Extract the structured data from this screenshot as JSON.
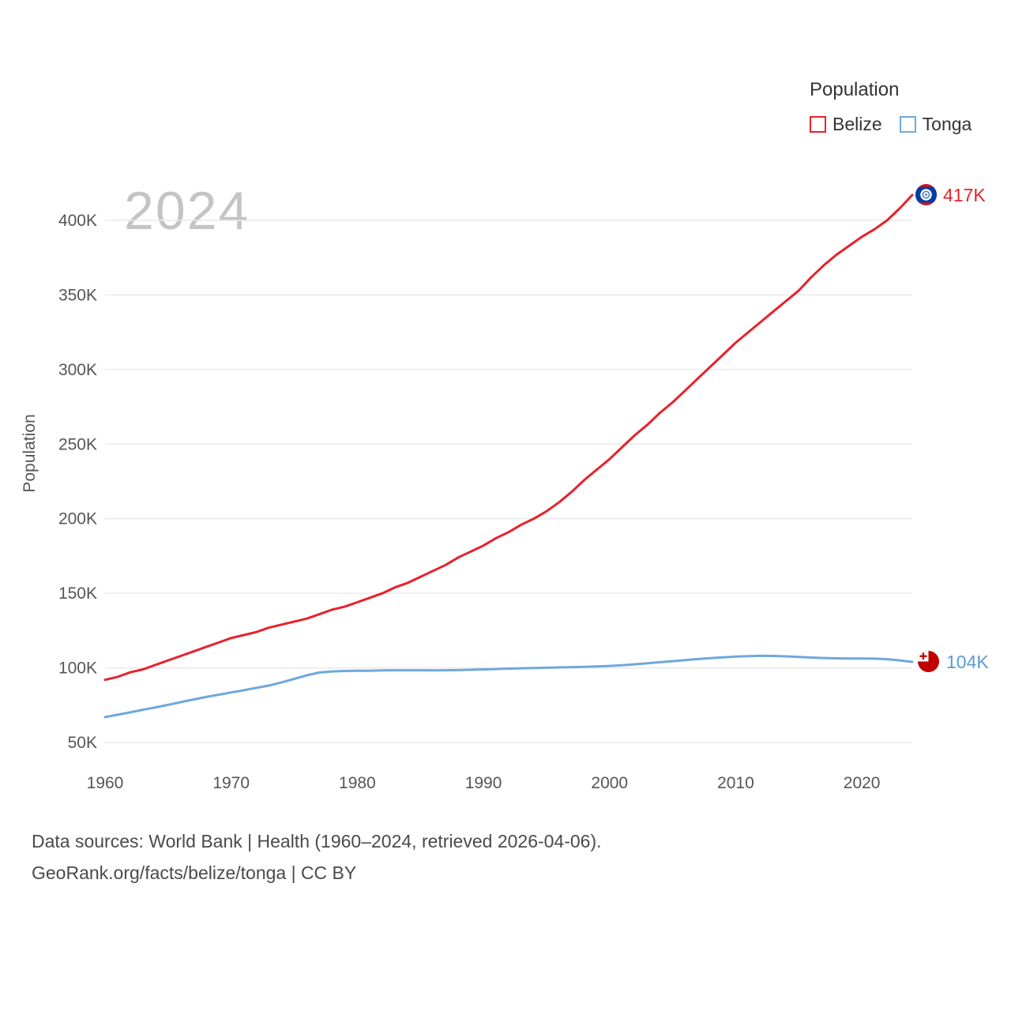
{
  "legend": {
    "title": "Population",
    "items": [
      {
        "label": "Belize",
        "color": "#e8212b"
      },
      {
        "label": "Tonga",
        "color": "#6fa8dc"
      }
    ]
  },
  "watermark_year": "2024",
  "y_axis_title": "Population",
  "end_labels": {
    "belize": "417K",
    "tonga": "104K"
  },
  "footer": {
    "line1": "Data sources: World Bank | Health (1960–2024, retrieved 2026-04-06).",
    "line2": "GeoRank.org/facts/belize/tonga | CC BY"
  },
  "chart_data": {
    "type": "line",
    "title": "Population",
    "ylabel": "Population",
    "xlabel": "",
    "units": "thousands of people",
    "grid": true,
    "legend_position": "top-right",
    "xlim": [
      1960,
      2024
    ],
    "ylim_thousands": [
      50,
      420
    ],
    "x": [
      1960,
      1961,
      1962,
      1963,
      1964,
      1965,
      1966,
      1967,
      1968,
      1969,
      1970,
      1971,
      1972,
      1973,
      1974,
      1975,
      1976,
      1977,
      1978,
      1979,
      1980,
      1981,
      1982,
      1983,
      1984,
      1985,
      1986,
      1987,
      1988,
      1989,
      1990,
      1991,
      1992,
      1993,
      1994,
      1995,
      1996,
      1997,
      1998,
      1999,
      2000,
      2001,
      2002,
      2003,
      2004,
      2005,
      2006,
      2007,
      2008,
      2009,
      2010,
      2011,
      2012,
      2013,
      2014,
      2015,
      2016,
      2017,
      2018,
      2019,
      2020,
      2021,
      2022,
      2023,
      2024
    ],
    "series": [
      {
        "name": "Belize",
        "color": "#e8212b",
        "end_value_label": "417K",
        "values": [
          92,
          94,
          97,
          99,
          102,
          105,
          108,
          111,
          114,
          117,
          120,
          122,
          124,
          127,
          129,
          131,
          133,
          136,
          139,
          141,
          144,
          147,
          150,
          154,
          157,
          161,
          165,
          169,
          174,
          178,
          182,
          187,
          191,
          196,
          200,
          205,
          211,
          218,
          226,
          233,
          240,
          248,
          256,
          263,
          271,
          278,
          286,
          294,
          302,
          310,
          318,
          325,
          332,
          339,
          346,
          353,
          362,
          370,
          377,
          383,
          389,
          394,
          400,
          408,
          417
        ]
      },
      {
        "name": "Tonga",
        "color": "#6fa8dc",
        "end_value_label": "104K",
        "values": [
          67,
          68.6,
          70.2,
          71.9,
          73.5,
          75.2,
          77,
          78.8,
          80.5,
          82,
          83.5,
          85,
          86.6,
          88.2,
          90.3,
          92.6,
          95,
          96.9,
          97.6,
          97.9,
          98,
          98.1,
          98.3,
          98.4,
          98.4,
          98.4,
          98.3,
          98.4,
          98.5,
          98.7,
          99,
          99.2,
          99.5,
          99.7,
          99.9,
          100.1,
          100.3,
          100.5,
          100.7,
          101,
          101.3,
          101.8,
          102.4,
          103.1,
          103.8,
          104.5,
          105.2,
          105.9,
          106.5,
          107.1,
          107.6,
          107.9,
          108.1,
          108,
          107.7,
          107.3,
          106.9,
          106.6,
          106.4,
          106.3,
          106.3,
          106.2,
          105.8,
          105,
          104
        ]
      }
    ],
    "y_ticks": [
      {
        "value": 50,
        "label": "50K"
      },
      {
        "value": 100,
        "label": "100K"
      },
      {
        "value": 150,
        "label": "150K"
      },
      {
        "value": 200,
        "label": "200K"
      },
      {
        "value": 250,
        "label": "250K"
      },
      {
        "value": 300,
        "label": "300K"
      },
      {
        "value": 350,
        "label": "350K"
      },
      {
        "value": 400,
        "label": "400K"
      }
    ],
    "x_ticks": [
      {
        "value": 1960,
        "label": "1960"
      },
      {
        "value": 1970,
        "label": "1970"
      },
      {
        "value": 1980,
        "label": "1980"
      },
      {
        "value": 1990,
        "label": "1990"
      },
      {
        "value": 2000,
        "label": "2000"
      },
      {
        "value": 2010,
        "label": "2010"
      },
      {
        "value": 2020,
        "label": "2020"
      }
    ]
  }
}
